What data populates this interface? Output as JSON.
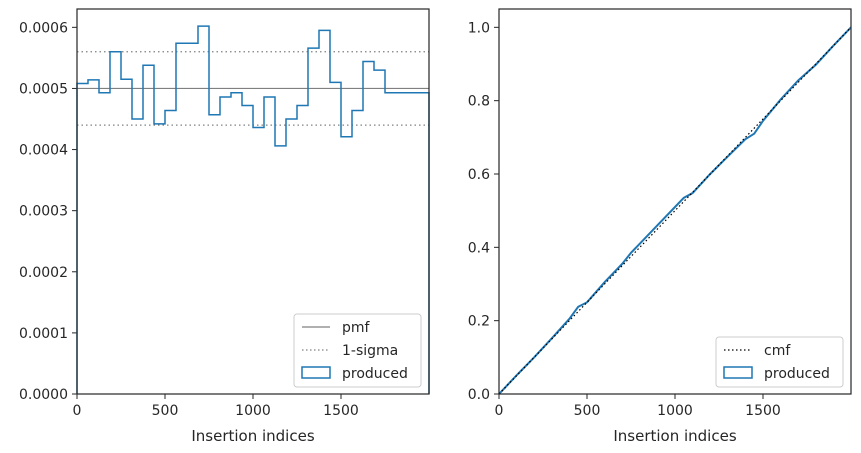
{
  "chart_data": [
    {
      "type": "step",
      "xlabel": "Insertion indices",
      "ylabel": "",
      "xlim": [
        0,
        2000
      ],
      "ylim": [
        0,
        0.00063
      ],
      "xticks": [
        "0",
        "500",
        "1000",
        "1500"
      ],
      "yticks": [
        "0.0000",
        "0.0001",
        "0.0002",
        "0.0003",
        "0.0004",
        "0.0005",
        "0.0006"
      ],
      "legend_position": "lower-right",
      "pmf": 0.0005,
      "sigma_band": [
        0.00044,
        0.00056
      ],
      "bin_width": 62.5,
      "series": [
        {
          "name": "pmf",
          "style": "solid",
          "color": "#808080"
        },
        {
          "name": "1-sigma",
          "style": "dotted",
          "color": "#808080"
        },
        {
          "name": "produced",
          "style": "step",
          "color": "#1f77b4",
          "values": [
            0.000508,
            0.000514,
            0.000493,
            0.00056,
            0.000515,
            0.00045,
            0.000538,
            0.000442,
            0.000464,
            0.000574,
            0.000574,
            0.000602,
            0.000457,
            0.000486,
            0.000493,
            0.000472,
            0.000436,
            0.000486,
            0.000406,
            0.00045,
            0.000472,
            0.000566,
            0.000595,
            0.00051,
            0.000421,
            0.000464,
            0.000544,
            0.00053,
            0.000493,
            0.000493,
            0.000493,
            0.000493
          ]
        }
      ]
    },
    {
      "type": "line",
      "xlabel": "Insertion indices",
      "ylabel": "",
      "xlim": [
        0,
        2000
      ],
      "ylim": [
        0,
        1.05
      ],
      "xticks": [
        "0",
        "500",
        "1000",
        "1500"
      ],
      "yticks": [
        "0.0",
        "0.2",
        "0.4",
        "0.6",
        "0.8",
        "1.0"
      ],
      "legend_position": "lower-right",
      "series": [
        {
          "name": "cmf",
          "style": "dotted",
          "color": "#000000",
          "x": [
            0,
            2000
          ],
          "y": [
            0,
            1.0
          ]
        },
        {
          "name": "produced",
          "style": "step",
          "color": "#1f77b4",
          "x": [
            0,
            100,
            200,
            300,
            400,
            450,
            500,
            600,
            700,
            750,
            800,
            900,
            1000,
            1050,
            1100,
            1200,
            1300,
            1400,
            1450,
            1500,
            1600,
            1700,
            1800,
            1900,
            2000
          ],
          "y": [
            0,
            0.051,
            0.1,
            0.152,
            0.205,
            0.238,
            0.25,
            0.305,
            0.355,
            0.385,
            0.41,
            0.46,
            0.51,
            0.535,
            0.548,
            0.6,
            0.648,
            0.695,
            0.71,
            0.745,
            0.803,
            0.855,
            0.898,
            0.95,
            1.0
          ]
        }
      ]
    }
  ]
}
